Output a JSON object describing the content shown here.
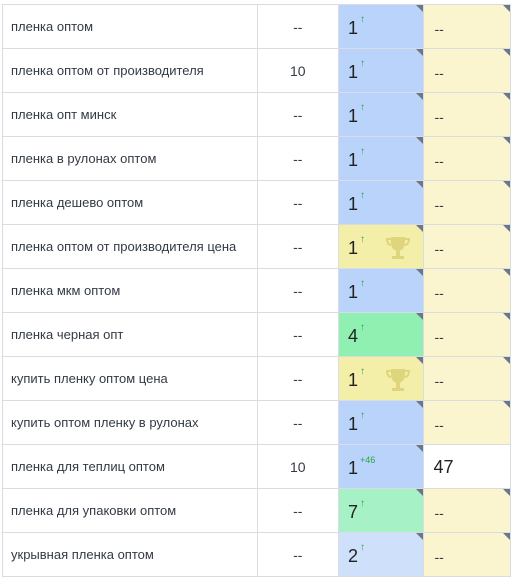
{
  "colors": {
    "position_blue": "#b9d3fa",
    "position_yellow": "#f3eea8",
    "position_green": "#8ff0b2",
    "competitor_cream": "#faf4cf",
    "arrow_green": "#28a745"
  },
  "rows": [
    {
      "keyword": "пленка оптом",
      "volume": "--",
      "position": "1",
      "marker": "↑",
      "pos_color": "blue",
      "trophy": false,
      "competitor": "--",
      "comp_color": "cream"
    },
    {
      "keyword": "пленка оптом от производителя",
      "volume": "10",
      "position": "1",
      "marker": "↑",
      "pos_color": "blue",
      "trophy": false,
      "competitor": "--",
      "comp_color": "cream"
    },
    {
      "keyword": "пленка опт минск",
      "volume": "--",
      "position": "1",
      "marker": "↑",
      "pos_color": "blue",
      "trophy": false,
      "competitor": "--",
      "comp_color": "cream"
    },
    {
      "keyword": "пленка в рулонах оптом",
      "volume": "--",
      "position": "1",
      "marker": "↑",
      "pos_color": "blue",
      "trophy": false,
      "competitor": "--",
      "comp_color": "cream"
    },
    {
      "keyword": "пленка дешево оптом",
      "volume": "--",
      "position": "1",
      "marker": "↑",
      "pos_color": "blue",
      "trophy": false,
      "competitor": "--",
      "comp_color": "cream"
    },
    {
      "keyword": "пленка оптом от производителя цена",
      "volume": "--",
      "position": "1",
      "marker": "↑",
      "pos_color": "yellow",
      "trophy": true,
      "competitor": "--",
      "comp_color": "cream"
    },
    {
      "keyword": "пленка мкм оптом",
      "volume": "--",
      "position": "1",
      "marker": "↑",
      "pos_color": "blue",
      "trophy": false,
      "competitor": "--",
      "comp_color": "cream"
    },
    {
      "keyword": "пленка черная опт",
      "volume": "--",
      "position": "4",
      "marker": "↑",
      "pos_color": "green",
      "trophy": false,
      "competitor": "--",
      "comp_color": "cream"
    },
    {
      "keyword": "купить пленку оптом цена",
      "volume": "--",
      "position": "1",
      "marker": "↑",
      "pos_color": "yellow",
      "trophy": true,
      "competitor": "--",
      "comp_color": "cream"
    },
    {
      "keyword": "купить оптом пленку в рулонах",
      "volume": "--",
      "position": "1",
      "marker": "↑",
      "pos_color": "blue",
      "trophy": false,
      "competitor": "--",
      "comp_color": "cream"
    },
    {
      "keyword": "пленка для теплиц оптом",
      "volume": "10",
      "position": "1",
      "marker": "+46",
      "pos_color": "blue",
      "trophy": false,
      "competitor": "47",
      "comp_color": "white"
    },
    {
      "keyword": "пленка для упаковки оптом",
      "volume": "--",
      "position": "7",
      "marker": "↑",
      "pos_color": "lightgreen",
      "trophy": false,
      "competitor": "--",
      "comp_color": "cream"
    },
    {
      "keyword": "укрывная пленка оптом",
      "volume": "--",
      "position": "2",
      "marker": "↑",
      "pos_color": "lightblue",
      "trophy": false,
      "competitor": "--",
      "comp_color": "cream"
    }
  ]
}
